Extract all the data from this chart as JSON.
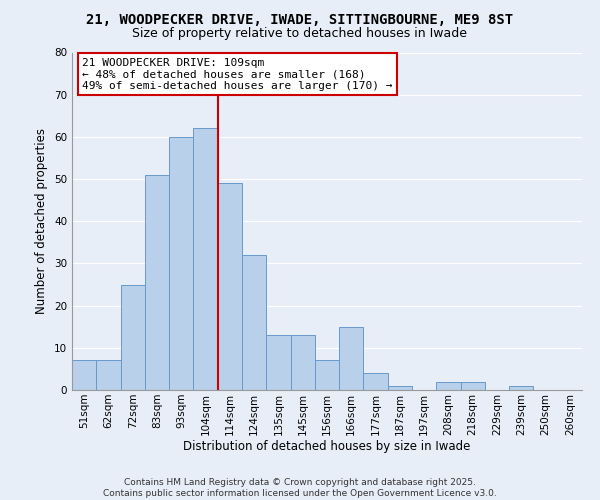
{
  "title": "21, WOODPECKER DRIVE, IWADE, SITTINGBOURNE, ME9 8ST",
  "subtitle": "Size of property relative to detached houses in Iwade",
  "xlabel": "Distribution of detached houses by size in Iwade",
  "ylabel": "Number of detached properties",
  "bar_labels": [
    "51sqm",
    "62sqm",
    "72sqm",
    "83sqm",
    "93sqm",
    "104sqm",
    "114sqm",
    "124sqm",
    "135sqm",
    "145sqm",
    "156sqm",
    "166sqm",
    "177sqm",
    "187sqm",
    "197sqm",
    "208sqm",
    "218sqm",
    "229sqm",
    "239sqm",
    "250sqm",
    "260sqm"
  ],
  "bar_values": [
    7,
    7,
    25,
    51,
    60,
    62,
    49,
    32,
    13,
    13,
    7,
    15,
    4,
    1,
    0,
    2,
    2,
    0,
    1,
    0,
    0
  ],
  "bar_color": "#b8d0ea",
  "bar_edge_color": "#6699cc",
  "vline_x": 5.5,
  "vline_color": "#cc0000",
  "ylim": [
    0,
    80
  ],
  "yticks": [
    0,
    10,
    20,
    30,
    40,
    50,
    60,
    70,
    80
  ],
  "annotation_line1": "21 WOODPECKER DRIVE: 109sqm",
  "annotation_line2": "← 48% of detached houses are smaller (168)",
  "annotation_line3": "49% of semi-detached houses are larger (170) →",
  "annotation_box_color": "#ffffff",
  "annotation_box_edge": "#cc0000",
  "footer_line1": "Contains HM Land Registry data © Crown copyright and database right 2025.",
  "footer_line2": "Contains public sector information licensed under the Open Government Licence v3.0.",
  "bg_color": "#e8eef8",
  "grid_color": "#ffffff",
  "title_fontsize": 10,
  "subtitle_fontsize": 9,
  "axis_label_fontsize": 8.5,
  "tick_fontsize": 7.5,
  "annotation_fontsize": 8,
  "footer_fontsize": 6.5
}
